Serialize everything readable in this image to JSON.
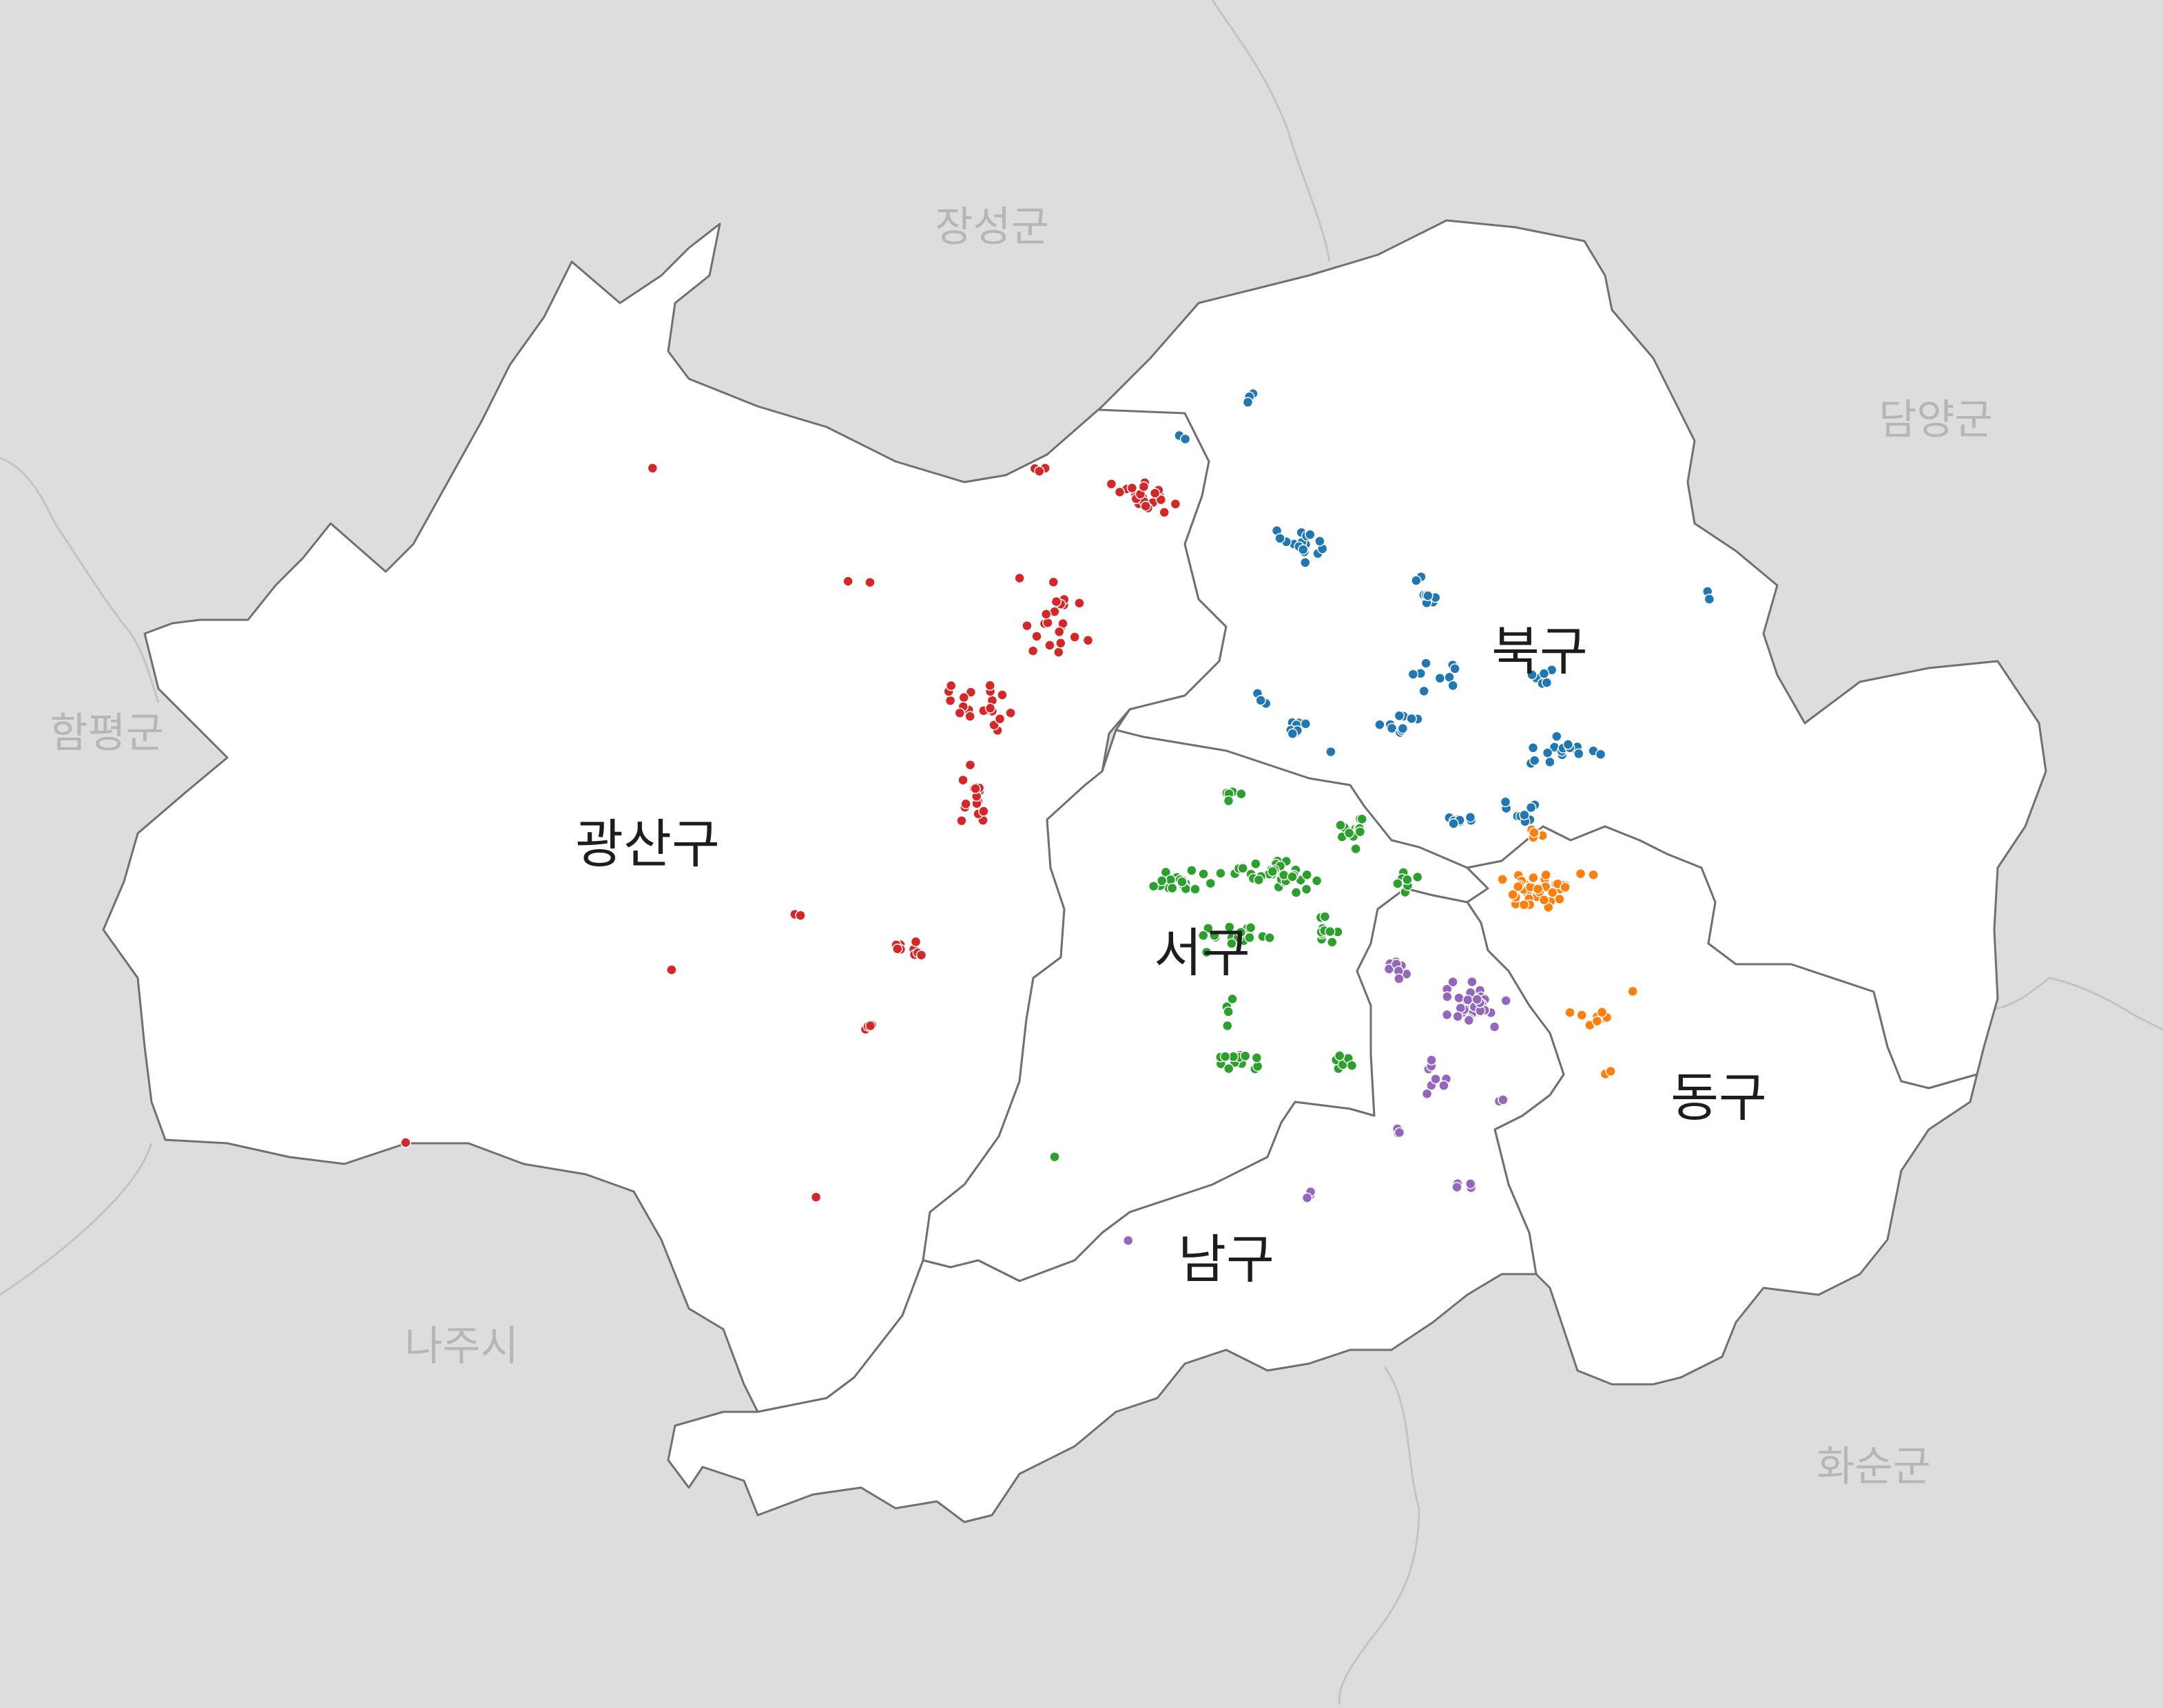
{
  "map": {
    "background_color": "#dcdddc",
    "district_fill": "#ffffff",
    "boundary_color": "#707070",
    "neighbors": [
      {
        "name": "장성군"
      },
      {
        "name": "담양군"
      },
      {
        "name": "함평군"
      },
      {
        "name": "나주시"
      },
      {
        "name": "화순군"
      }
    ],
    "districts": [
      {
        "id": "gwangsan",
        "name": "광산구",
        "point_color": "#d62728"
      },
      {
        "id": "buk",
        "name": "북구",
        "point_color": "#1f77b4"
      },
      {
        "id": "seo",
        "name": "서구",
        "point_color": "#2ca02c"
      },
      {
        "id": "nam",
        "name": "남구",
        "point_color": "#9467bd"
      },
      {
        "id": "dong",
        "name": "동구",
        "point_color": "#ff7f0e"
      }
    ]
  }
}
